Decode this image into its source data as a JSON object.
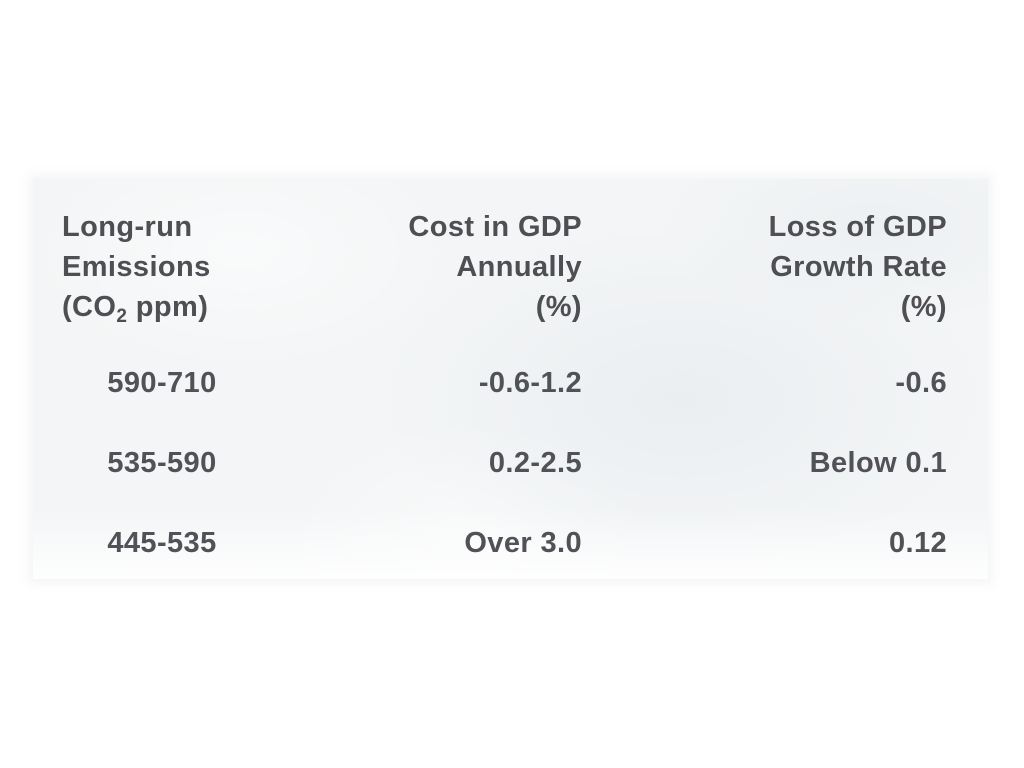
{
  "document": {
    "background_color": "#ffffff",
    "panel_color": "#f3f5f6",
    "text_color": "#4e4e53"
  },
  "table": {
    "header": {
      "emissions": {
        "line1": "Long-run",
        "line2": "Emissions",
        "line3_prefix": "(CO",
        "line3_subscript": "2",
        "line3_suffix": " ppm)"
      },
      "cost": {
        "line1": "Cost in GDP",
        "line2": "Annually",
        "line3": "(%)"
      },
      "loss": {
        "line1": "Loss of GDP",
        "line2": "Growth Rate",
        "line3": "(%)"
      }
    },
    "rows": [
      {
        "emissions": "590-710",
        "cost": "-0.6-1.2",
        "loss": "-0.6"
      },
      {
        "emissions": "535-590",
        "cost": "0.2-2.5",
        "loss": "Below 0.1"
      },
      {
        "emissions": "445-535",
        "cost": "Over 3.0",
        "loss": "0.12"
      }
    ]
  }
}
